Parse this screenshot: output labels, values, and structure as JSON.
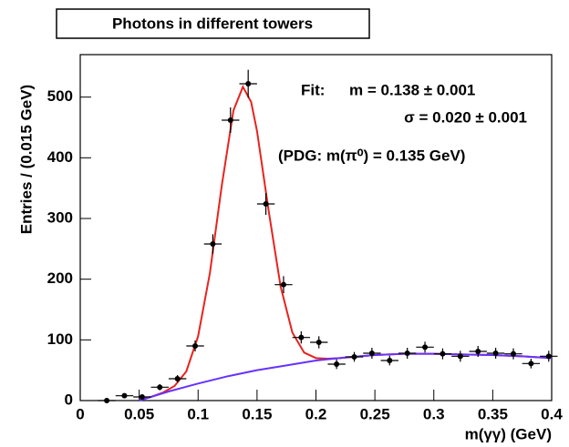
{
  "chart_data": {
    "type": "scatter",
    "title": "Photons in different towers",
    "x_label": "m(γγ)  (GeV)",
    "y_label": "Entries / (0.015 GeV)",
    "annotations": [
      "Fit:",
      "m = 0.138 ± 0.001",
      "σ = 0.020 ± 0.001",
      "(PDG: m(π⁰) = 0.135 GeV)"
    ],
    "x": [
      0.0225,
      0.0375,
      0.0525,
      0.0675,
      0.0825,
      0.0975,
      0.1125,
      0.1275,
      0.1425,
      0.1575,
      0.1725,
      0.1875,
      0.2025,
      0.2175,
      0.2325,
      0.2475,
      0.2625,
      0.2775,
      0.2925,
      0.3075,
      0.3225,
      0.3375,
      0.3525,
      0.3675,
      0.3825,
      0.3975
    ],
    "values": [
      0,
      8,
      6,
      22,
      36,
      90,
      258,
      462,
      522,
      324,
      191,
      104,
      96,
      60,
      72,
      78,
      66,
      78,
      88,
      77,
      73,
      81,
      78,
      77,
      61,
      73
    ],
    "yerr": [
      0,
      3,
      3,
      5,
      6,
      9,
      16,
      21,
      23,
      18,
      14,
      10,
      10,
      8,
      8,
      9,
      8,
      9,
      9,
      9,
      9,
      9,
      9,
      9,
      8,
      9
    ],
    "xerr": 0.0075,
    "color": "#000000",
    "fits": [
      {
        "color": "#e8231e",
        "x": [
          0.05,
          0.06,
          0.07,
          0.08,
          0.09,
          0.1,
          0.11,
          0.12,
          0.13,
          0.138,
          0.145,
          0.15,
          0.16,
          0.17,
          0.18,
          0.19,
          0.2,
          0.21,
          0.22,
          0.25,
          0.275,
          0.3,
          0.325,
          0.35,
          0.375,
          0.4
        ],
        "values": [
          1,
          6,
          13,
          24,
          48,
          106,
          210,
          353,
          478,
          517,
          492,
          444,
          311,
          188,
          112,
          79,
          70,
          69,
          70,
          75,
          77,
          77,
          76,
          75,
          73,
          70
        ]
      },
      {
        "color": "#6633ff",
        "x": [
          0.05,
          0.075,
          0.1,
          0.125,
          0.15,
          0.175,
          0.2,
          0.225,
          0.25,
          0.275,
          0.3,
          0.325,
          0.35,
          0.375,
          0.4
        ],
        "values": [
          0,
          15,
          28,
          40,
          50,
          58,
          66,
          71,
          75,
          77,
          77,
          76,
          75,
          73,
          70
        ]
      }
    ],
    "xlim": [
      0,
      0.4
    ],
    "ylim": [
      0,
      570
    ],
    "xticks": [
      0,
      0.05,
      0.1,
      0.15,
      0.2,
      0.25,
      0.3,
      0.35,
      0.4
    ],
    "yticks": [
      0,
      100,
      200,
      300,
      400,
      500
    ]
  }
}
